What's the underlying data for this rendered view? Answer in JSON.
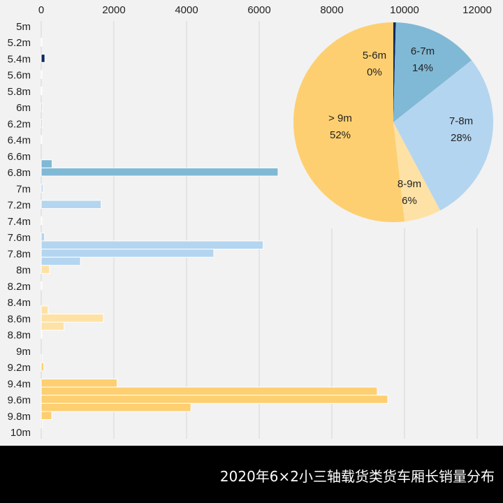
{
  "chart_data": [
    {
      "type": "bar",
      "orientation": "horizontal",
      "title": "",
      "xlabel": "",
      "ylabel": "",
      "xlim": [
        0,
        12000
      ],
      "x_ticks": [
        "0",
        "2000",
        "4000",
        "6000",
        "8000",
        "10000",
        "12000"
      ],
      "x_tick_values": [
        0,
        2000,
        4000,
        6000,
        8000,
        10000,
        12000
      ],
      "grid": true,
      "categories": [
        "5m",
        "5.1m",
        "5.2m",
        "5.3m",
        "5.4m",
        "5.5m",
        "5.6m",
        "5.7m",
        "5.8m",
        "5.9m",
        "6m",
        "6.1m",
        "6.2m",
        "6.3m",
        "6.4m",
        "6.5m",
        "6.6m",
        "6.7m",
        "6.8m",
        "6.9m",
        "7m",
        "7.1m",
        "7.2m",
        "7.3m",
        "7.4m",
        "7.5m",
        "7.6m",
        "7.7m",
        "7.8m",
        "7.9m",
        "8m",
        "8.1m",
        "8.2m",
        "8.3m",
        "8.4m",
        "8.5m",
        "8.6m",
        "8.7m",
        "8.8m",
        "8.9m",
        "9m",
        "9.1m",
        "9.2m",
        "9.3m",
        "9.4m",
        "9.5m",
        "9.6m",
        "9.7m",
        "9.8m",
        "9.9m",
        "10m"
      ],
      "labeled_categories": [
        "5m",
        "5.2m",
        "5.4m",
        "5.6m",
        "5.8m",
        "6m",
        "6.2m",
        "6.4m",
        "6.6m",
        "6.8m",
        "7m",
        "7.2m",
        "7.4m",
        "7.6m",
        "7.8m",
        "8m",
        "8.2m",
        "8.4m",
        "8.6m",
        "8.8m",
        "9m",
        "9.2m",
        "9.4m",
        "9.6m",
        "9.8m",
        "10m"
      ],
      "values": [
        0,
        0,
        10,
        0,
        100,
        0,
        10,
        0,
        10,
        0,
        30,
        0,
        30,
        0,
        10,
        0,
        0,
        300,
        6520,
        0,
        50,
        0,
        1650,
        0,
        10,
        0,
        90,
        6110,
        4750,
        1080,
        230,
        0,
        10,
        0,
        0,
        190,
        1710,
        630,
        10,
        0,
        0,
        30,
        70,
        0,
        2090,
        9250,
        9540,
        4120,
        290,
        30,
        0
      ]
    },
    {
      "type": "pie",
      "start": "top",
      "direction": "clockwise",
      "slices": [
        {
          "label": "5-6m",
          "pct_label": "0%",
          "value": 0.4,
          "color": "#0e2a5e"
        },
        {
          "label": "6-7m",
          "pct_label": "14%",
          "value": 14,
          "color": "#80b9d5"
        },
        {
          "label": "7-8m",
          "pct_label": "28%",
          "value": 28,
          "color": "#b4d5ef"
        },
        {
          "label": "8-9m",
          "pct_label": "6%",
          "value": 6,
          "color": "#fee2a5"
        },
        {
          "label": "> 9m",
          "pct_label": "52%",
          "value": 52,
          "color": "#fecf70"
        }
      ]
    }
  ],
  "footer": {
    "title": "2020年6×2小三轴载货类货车厢长销量分布"
  }
}
